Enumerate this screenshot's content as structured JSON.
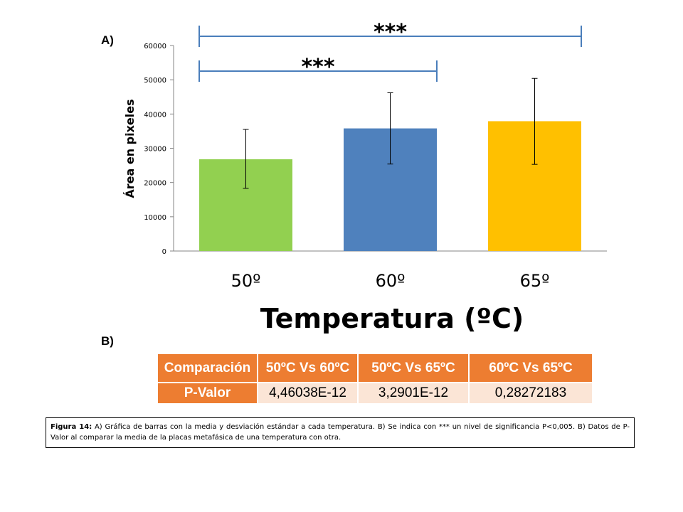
{
  "panel_labels": {
    "a": "A)",
    "b": "B)"
  },
  "chart_data": {
    "type": "bar",
    "categories": [
      "50º",
      "60º",
      "65º"
    ],
    "values": [
      26800,
      35800,
      37900
    ],
    "error_low": [
      18300,
      25400,
      25300
    ],
    "error_high": [
      35500,
      46200,
      50400
    ],
    "colors": [
      "#92D050",
      "#4F81BD",
      "#FFC000"
    ],
    "xlabel": "Temperatura (ºC)",
    "ylabel": "Área en pixeles",
    "ylim": [
      0,
      60000
    ],
    "yticks": [
      "0",
      "10000",
      "20000",
      "30000",
      "40000",
      "50000",
      "60000"
    ],
    "grid": false,
    "significance": [
      {
        "from": "50º",
        "to": "65º",
        "label": "***"
      },
      {
        "from": "50º",
        "to": "60º",
        "label": "***"
      }
    ]
  },
  "table": {
    "headers": [
      "Comparación",
      "50ºC Vs 60ºC",
      "50ºC Vs 65ºC",
      "60ºC Vs 65ºC"
    ],
    "row_label": "P-Valor",
    "values": [
      "4,46038E-12",
      "3,2901E-12",
      "0,28272183"
    ]
  },
  "caption": {
    "label": "Figura 14:",
    "text": " A) Gráfica de barras con la media y desviación estándar a cada temperatura. B) Se indica con *** un nivel de significancia P<0,005. B) Datos de P-Valor al comparar la media de la placas metafásica de una temperatura con otra."
  }
}
